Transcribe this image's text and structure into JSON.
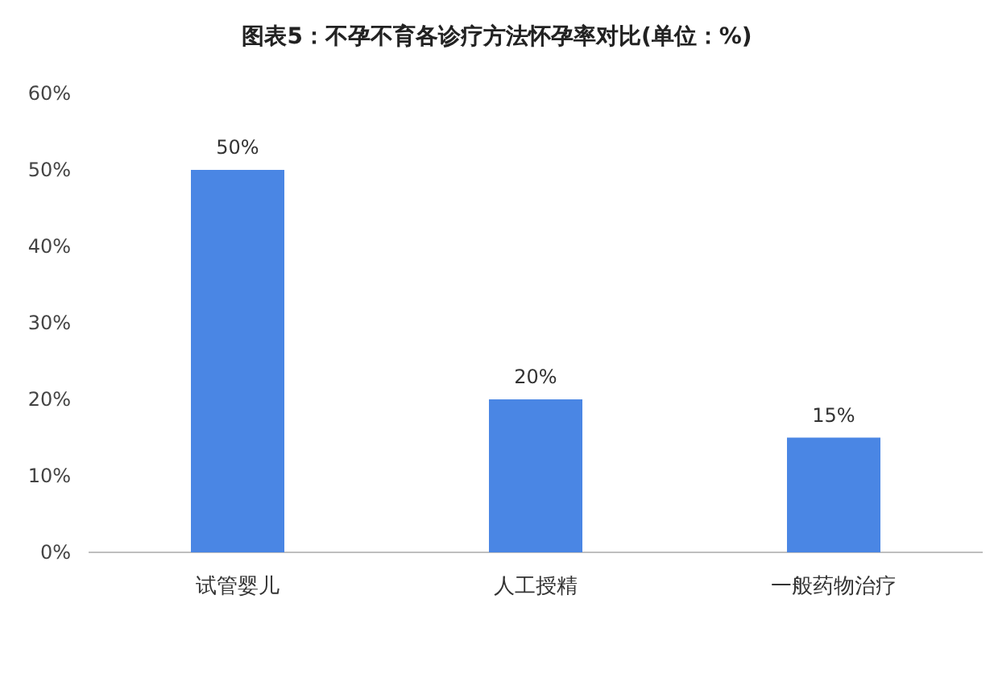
{
  "chart_data": {
    "type": "bar",
    "title": "图表5：不孕不育各诊疗方法怀孕率对比(单位：%)",
    "categories": [
      "试管婴儿",
      "人工授精",
      "一般药物治疗"
    ],
    "values": [
      50,
      20,
      15
    ],
    "value_labels": [
      "50%",
      "20%",
      "15%"
    ],
    "color": "#4a86e4",
    "ylim": [
      0,
      60
    ],
    "yticks": [
      {
        "value": 0,
        "label": "0%"
      },
      {
        "value": 10,
        "label": "10%"
      },
      {
        "value": 20,
        "label": "20%"
      },
      {
        "value": 30,
        "label": "30%"
      },
      {
        "value": 40,
        "label": "40%"
      },
      {
        "value": 50,
        "label": "50%"
      },
      {
        "value": 60,
        "label": "60%"
      }
    ]
  }
}
